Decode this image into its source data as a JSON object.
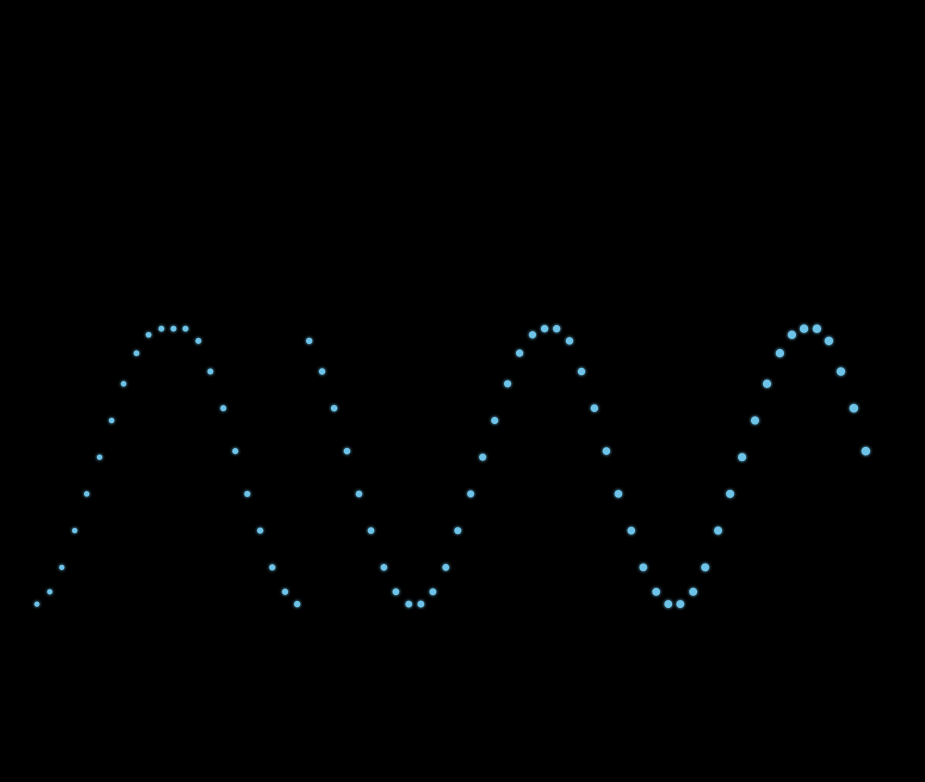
{
  "chart_data": {
    "type": "scatter",
    "title": "",
    "xlabel": "",
    "ylabel": "",
    "grid": false,
    "legend": "none",
    "xlim": [
      0,
      100
    ],
    "ylim": [
      0,
      100
    ],
    "axis_color": "#7fb83a",
    "point_color": "#6ec3e8",
    "series": [
      {
        "x": [
          1.5,
          3.0,
          4.4,
          5.9,
          7.3,
          8.8,
          10.2,
          11.6,
          13.1,
          14.5,
          16.0,
          17.4,
          18.8,
          20.3,
          21.7,
          23.2,
          24.6,
          26.0,
          27.5,
          28.9,
          30.4,
          31.8,
          33.2,
          34.7,
          36.1,
          37.6,
          39.0,
          40.4,
          41.9,
          43.3,
          44.8,
          46.2,
          47.6,
          49.1,
          50.5,
          52.0,
          53.4,
          54.8,
          56.3,
          57.7,
          59.2,
          60.6,
          62.0,
          63.5,
          64.9,
          66.4,
          67.8,
          69.2,
          70.7,
          72.1,
          73.6,
          75.0,
          76.4,
          77.9,
          79.3,
          80.8,
          82.2,
          83.6,
          85.1,
          86.5,
          88.0,
          89.4,
          90.8,
          92.3,
          93.7,
          95.1,
          96.6,
          98.0
        ],
        "y": [
          16,
          18,
          22,
          28,
          34,
          40,
          46,
          52,
          57,
          60,
          61,
          61,
          61,
          59,
          54,
          48,
          41,
          34,
          28,
          22,
          18,
          16,
          59,
          54,
          48,
          41,
          34,
          28,
          22,
          18,
          16,
          16,
          18,
          22,
          28,
          34,
          40,
          46,
          52,
          57,
          60,
          61,
          61,
          59,
          54,
          48,
          41,
          34,
          28,
          22,
          18,
          16,
          16,
          18,
          22,
          28,
          34,
          40,
          46,
          52,
          57,
          60,
          61,
          61,
          59,
          54,
          48,
          41
        ]
      }
    ]
  }
}
